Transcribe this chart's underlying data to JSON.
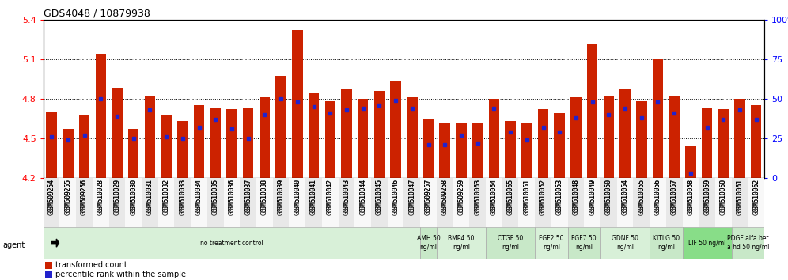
{
  "title": "GDS4048 / 10879938",
  "ylim": [
    4.2,
    5.4
  ],
  "yticks_left": [
    4.2,
    4.5,
    4.8,
    5.1,
    5.4
  ],
  "yticks_right": [
    0,
    25,
    50,
    75,
    100
  ],
  "bar_color": "#cc2200",
  "dot_color": "#2222cc",
  "bar_width": 0.65,
  "samples": [
    "GSM509254",
    "GSM509255",
    "GSM509256",
    "GSM510028",
    "GSM510029",
    "GSM510030",
    "GSM510031",
    "GSM510032",
    "GSM510033",
    "GSM510034",
    "GSM510035",
    "GSM510036",
    "GSM510037",
    "GSM510038",
    "GSM510039",
    "GSM510040",
    "GSM510041",
    "GSM510042",
    "GSM510043",
    "GSM510044",
    "GSM510045",
    "GSM510046",
    "GSM510047",
    "GSM509257",
    "GSM509258",
    "GSM509259",
    "GSM510063",
    "GSM510064",
    "GSM510065",
    "GSM510051",
    "GSM510052",
    "GSM510053",
    "GSM510048",
    "GSM510049",
    "GSM510050",
    "GSM510054",
    "GSM510055",
    "GSM510056",
    "GSM510057",
    "GSM510058",
    "GSM510059",
    "GSM510060",
    "GSM510061",
    "GSM510062"
  ],
  "bar_heights": [
    4.7,
    4.57,
    4.68,
    5.14,
    4.88,
    4.57,
    4.82,
    4.68,
    4.63,
    4.75,
    4.73,
    4.72,
    4.73,
    4.81,
    4.97,
    5.32,
    4.84,
    4.78,
    4.87,
    4.8,
    4.86,
    4.93,
    4.81,
    4.65,
    4.62,
    4.62,
    4.62,
    4.8,
    4.63,
    4.62,
    4.72,
    4.69,
    4.81,
    5.22,
    4.82,
    4.87,
    4.78,
    5.1,
    4.82,
    4.44,
    4.73,
    4.72,
    4.8,
    4.75
  ],
  "dot_heights_pct": [
    26,
    24,
    27,
    50,
    39,
    25,
    43,
    26,
    25,
    32,
    37,
    31,
    25,
    40,
    50,
    48,
    45,
    41,
    43,
    44,
    46,
    49,
    44,
    21,
    21,
    27,
    22,
    44,
    29,
    24,
    32,
    29,
    38,
    48,
    40,
    44,
    38,
    48,
    41,
    3,
    32,
    37,
    43,
    37
  ],
  "group_regions": [
    {
      "label": "no treatment control",
      "start": 0,
      "end": 23,
      "color": "#d8f0d8"
    },
    {
      "label": "AMH 50\nng/ml",
      "start": 23,
      "end": 24,
      "color": "#c8e8c8"
    },
    {
      "label": "BMP4 50\nng/ml",
      "start": 24,
      "end": 27,
      "color": "#d8f0d8"
    },
    {
      "label": "CTGF 50\nng/ml",
      "start": 27,
      "end": 30,
      "color": "#c8e8c8"
    },
    {
      "label": "FGF2 50\nng/ml",
      "start": 30,
      "end": 32,
      "color": "#d8f0d8"
    },
    {
      "label": "FGF7 50\nng/ml",
      "start": 32,
      "end": 34,
      "color": "#c8e8c8"
    },
    {
      "label": "GDNF 50\nng/ml",
      "start": 34,
      "end": 37,
      "color": "#d8f0d8"
    },
    {
      "label": "KITLG 50\nng/ml",
      "start": 37,
      "end": 39,
      "color": "#c8e8c8"
    },
    {
      "label": "LIF 50 ng/ml",
      "start": 39,
      "end": 42,
      "color": "#88dd88"
    },
    {
      "label": "PDGF alfa bet\na hd 50 ng/ml",
      "start": 42,
      "end": 44,
      "color": "#c8e8c8"
    }
  ],
  "legend_items": [
    {
      "label": "transformed count",
      "color": "#cc2200"
    },
    {
      "label": "percentile rank within the sample",
      "color": "#2222cc"
    }
  ],
  "bg_color": "#ffffff"
}
